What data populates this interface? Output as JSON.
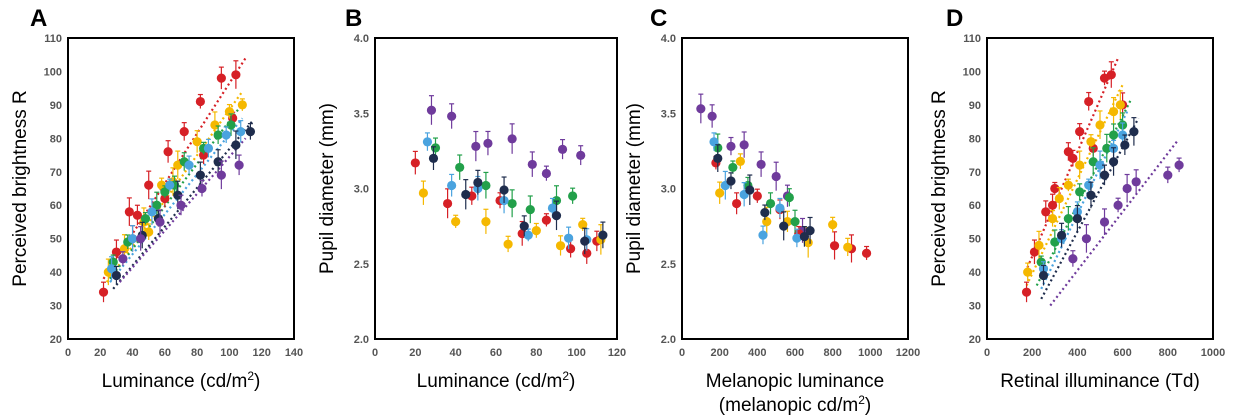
{
  "colors": {
    "red": "#d62026",
    "orange": "#f5b800",
    "green": "#22a04a",
    "blue": "#4aa3df",
    "navy": "#1f2d4d",
    "purple": "#6f3b9c",
    "yellow": "#f7c520"
  },
  "chart_data": [
    {
      "panel_label": "A",
      "type": "scatter",
      "xlabel": "Luminance (cd/m²)",
      "ylabel": "Perceived brightness R",
      "xlim": [
        0,
        140
      ],
      "ylim": [
        20,
        110
      ],
      "xticks": [
        "0",
        "20",
        "40",
        "60",
        "80",
        "100",
        "120",
        "140"
      ],
      "yticks": [
        "20",
        "30",
        "40",
        "50",
        "60",
        "70",
        "80",
        "90",
        "100",
        "110"
      ],
      "series": [
        {
          "color": "red",
          "points": [
            [
              22,
              34
            ],
            [
              30,
              46
            ],
            [
              38,
              58
            ],
            [
              43,
              57
            ],
            [
              50,
              66
            ],
            [
              62,
              76
            ],
            [
              72,
              82
            ],
            [
              82,
              91
            ],
            [
              95,
              98
            ],
            [
              104,
              99
            ],
            [
              40,
              50
            ],
            [
              60,
              62
            ],
            [
              84,
              75
            ],
            [
              102,
              86
            ]
          ],
          "fit": [
            [
              22,
              38
            ],
            [
              110,
              104
            ]
          ]
        },
        {
          "color": "orange",
          "points": [
            [
              25,
              40
            ],
            [
              35,
              47
            ],
            [
              47,
              55
            ],
            [
              58,
              66
            ],
            [
              68,
              72
            ],
            [
              80,
              79
            ],
            [
              91,
              84
            ],
            [
              100,
              88
            ],
            [
              108,
              90
            ],
            [
              50,
              52
            ],
            [
              65,
              67
            ]
          ],
          "fit": [
            [
              24,
              37
            ],
            [
              108,
              94
            ]
          ]
        },
        {
          "color": "green",
          "points": [
            [
              28,
              43
            ],
            [
              37,
              49
            ],
            [
              48,
              56
            ],
            [
              60,
              64
            ],
            [
              72,
              73
            ],
            [
              84,
              77
            ],
            [
              93,
              81
            ],
            [
              101,
              84
            ],
            [
              55,
              60
            ],
            [
              66,
              66
            ]
          ],
          "fit": [
            [
              26,
              38
            ],
            [
              106,
              89
            ]
          ]
        },
        {
          "color": "blue",
          "points": [
            [
              27,
              41
            ],
            [
              40,
              50
            ],
            [
              52,
              58
            ],
            [
              63,
              66
            ],
            [
              75,
              72
            ],
            [
              87,
              77
            ],
            [
              98,
              81
            ],
            [
              107,
              82
            ]
          ],
          "fit": [
            [
              26,
              37
            ],
            [
              108,
              86
            ]
          ]
        },
        {
          "color": "navy",
          "points": [
            [
              30,
              39
            ],
            [
              46,
              51
            ],
            [
              56,
              56
            ],
            [
              68,
              63
            ],
            [
              82,
              69
            ],
            [
              93,
              73
            ],
            [
              104,
              78
            ],
            [
              113,
              82
            ]
          ],
          "fit": [
            [
              28,
              35
            ],
            [
              114,
              85
            ]
          ]
        },
        {
          "color": "purple",
          "points": [
            [
              34,
              44
            ],
            [
              45,
              50
            ],
            [
              57,
              55
            ],
            [
              70,
              60
            ],
            [
              83,
              65
            ],
            [
              95,
              69
            ],
            [
              106,
              72
            ]
          ],
          "fit": [
            [
              32,
              37
            ],
            [
              110,
              80
            ]
          ]
        }
      ]
    },
    {
      "panel_label": "B",
      "type": "scatter",
      "xlabel": "Luminance (cd/m²)",
      "ylabel": "Pupil diameter (mm)",
      "xlim": [
        0,
        120
      ],
      "ylim": [
        2.0,
        4.0
      ],
      "xticks": [
        "0",
        "20",
        "40",
        "60",
        "80",
        "100",
        "120"
      ],
      "yticks": [
        "2.0",
        "2.5",
        "3.0",
        "3.5",
        "4.0"
      ],
      "series": [
        {
          "color": "purple",
          "points": [
            [
              28,
              3.52
            ],
            [
              38,
              3.48
            ],
            [
              50,
              3.28
            ],
            [
              56,
              3.3
            ],
            [
              68,
              3.33
            ],
            [
              78,
              3.16
            ],
            [
              85,
              3.1
            ],
            [
              93,
              3.26
            ],
            [
              102,
              3.22
            ]
          ]
        },
        {
          "color": "red",
          "points": [
            [
              20,
              3.17
            ],
            [
              36,
              2.9
            ],
            [
              48,
              2.95
            ],
            [
              62,
              2.92
            ],
            [
              73,
              2.7
            ],
            [
              85,
              2.79
            ],
            [
              97,
              2.6
            ],
            [
              105,
              2.57
            ],
            [
              110,
              2.65
            ]
          ]
        },
        {
          "color": "orange",
          "points": [
            [
              24,
              2.97
            ],
            [
              40,
              2.78
            ],
            [
              55,
              2.78
            ],
            [
              66,
              2.63
            ],
            [
              80,
              2.72
            ],
            [
              92,
              2.62
            ],
            [
              103,
              2.76
            ],
            [
              112,
              2.66
            ]
          ]
        },
        {
          "color": "green",
          "points": [
            [
              30,
              3.27
            ],
            [
              42,
              3.14
            ],
            [
              55,
              3.02
            ],
            [
              68,
              2.9
            ],
            [
              77,
              2.86
            ],
            [
              90,
              2.92
            ],
            [
              98,
              2.95
            ]
          ]
        },
        {
          "color": "blue",
          "points": [
            [
              26,
              3.31
            ],
            [
              38,
              3.02
            ],
            [
              51,
              3.0
            ],
            [
              64,
              2.92
            ],
            [
              76,
              2.69
            ],
            [
              88,
              2.87
            ],
            [
              96,
              2.67
            ],
            [
              105,
              2.66
            ]
          ]
        },
        {
          "color": "navy",
          "points": [
            [
              29,
              3.2
            ],
            [
              45,
              2.96
            ],
            [
              51,
              3.04
            ],
            [
              64,
              2.99
            ],
            [
              74,
              2.75
            ],
            [
              90,
              2.82
            ],
            [
              104,
              2.65
            ],
            [
              113,
              2.69
            ]
          ]
        }
      ]
    },
    {
      "panel_label": "C",
      "type": "scatter",
      "xlabel": "Melanopic luminance",
      "xlabel_2": "(melanopic cd/m²)",
      "ylabel": "Pupil diameter (mm)",
      "xlim": [
        0,
        1200
      ],
      "ylim": [
        2.0,
        4.0
      ],
      "xticks": [
        "0",
        "200",
        "400",
        "600",
        "800",
        "1000",
        "1200"
      ],
      "yticks": [
        "2.0",
        "2.5",
        "3.0",
        "3.5",
        "4.0"
      ],
      "series": [
        {
          "color": "purple",
          "points": [
            [
              100,
              3.53
            ],
            [
              160,
              3.48
            ],
            [
              260,
              3.28
            ],
            [
              330,
              3.29
            ],
            [
              420,
              3.16
            ],
            [
              500,
              3.08
            ],
            [
              560,
              2.95
            ],
            [
              640,
              2.72
            ]
          ]
        },
        {
          "color": "red",
          "points": [
            [
              180,
              3.17
            ],
            [
              290,
              2.9
            ],
            [
              400,
              2.95
            ],
            [
              520,
              2.86
            ],
            [
              620,
              2.7
            ],
            [
              810,
              2.62
            ],
            [
              900,
              2.6
            ],
            [
              980,
              2.57
            ]
          ]
        },
        {
          "color": "orange",
          "points": [
            [
              200,
              2.97
            ],
            [
              310,
              3.18
            ],
            [
              450,
              2.78
            ],
            [
              560,
              2.78
            ],
            [
              670,
              2.64
            ],
            [
              800,
              2.76
            ],
            [
              880,
              2.61
            ]
          ]
        },
        {
          "color": "green",
          "points": [
            [
              190,
              3.27
            ],
            [
              270,
              3.14
            ],
            [
              350,
              3.02
            ],
            [
              470,
              2.9
            ],
            [
              570,
              2.94
            ],
            [
              600,
              2.78
            ]
          ]
        },
        {
          "color": "blue",
          "points": [
            [
              170,
              3.31
            ],
            [
              230,
              3.02
            ],
            [
              330,
              2.96
            ],
            [
              430,
              2.69
            ],
            [
              520,
              2.87
            ],
            [
              610,
              2.67
            ]
          ]
        },
        {
          "color": "navy",
          "points": [
            [
              190,
              3.2
            ],
            [
              260,
              3.05
            ],
            [
              360,
              2.99
            ],
            [
              440,
              2.84
            ],
            [
              540,
              2.75
            ],
            [
              650,
              2.68
            ],
            [
              680,
              2.72
            ]
          ]
        }
      ]
    },
    {
      "panel_label": "D",
      "type": "scatter",
      "xlabel": "Retinal illuminance (Td)",
      "ylabel": "Perceived brightness R",
      "xlim": [
        0,
        1000
      ],
      "ylim": [
        20,
        110
      ],
      "xticks": [
        "0",
        "200",
        "400",
        "600",
        "800",
        "1000"
      ],
      "yticks": [
        "20",
        "30",
        "40",
        "50",
        "60",
        "70",
        "80",
        "90",
        "100",
        "110"
      ],
      "series": [
        {
          "color": "red",
          "points": [
            [
              175,
              34
            ],
            [
              210,
              46
            ],
            [
              260,
              58
            ],
            [
              300,
              65
            ],
            [
              360,
              76
            ],
            [
              410,
              82
            ],
            [
              450,
              91
            ],
            [
              520,
              98
            ],
            [
              550,
              99
            ],
            [
              290,
              60
            ],
            [
              380,
              74
            ],
            [
              470,
              77
            ],
            [
              600,
              90
            ]
          ],
          "fit": [
            [
              170,
              40
            ],
            [
              580,
              104
            ]
          ]
        },
        {
          "color": "orange",
          "points": [
            [
              180,
              40
            ],
            [
              230,
              48
            ],
            [
              290,
              56
            ],
            [
              360,
              66
            ],
            [
              410,
              72
            ],
            [
              460,
              79
            ],
            [
              500,
              84
            ],
            [
              560,
              88
            ],
            [
              590,
              90
            ],
            [
              320,
              62
            ]
          ],
          "fit": [
            [
              175,
              36
            ],
            [
              600,
              96
            ]
          ]
        },
        {
          "color": "green",
          "points": [
            [
              240,
              43
            ],
            [
              300,
              49
            ],
            [
              360,
              56
            ],
            [
              410,
              64
            ],
            [
              470,
              73
            ],
            [
              530,
              77
            ],
            [
              560,
              81
            ],
            [
              600,
              84
            ]
          ],
          "fit": [
            [
              220,
              36
            ],
            [
              640,
              92
            ]
          ]
        },
        {
          "color": "blue",
          "points": [
            [
              250,
              41
            ],
            [
              330,
              50
            ],
            [
              400,
              58
            ],
            [
              450,
              66
            ],
            [
              500,
              72
            ],
            [
              560,
              77
            ],
            [
              600,
              81
            ]
          ],
          "fit": [
            [
              240,
              35
            ],
            [
              620,
              88
            ]
          ]
        },
        {
          "color": "navy",
          "points": [
            [
              250,
              39
            ],
            [
              330,
              51
            ],
            [
              400,
              56
            ],
            [
              460,
              63
            ],
            [
              520,
              69
            ],
            [
              560,
              73
            ],
            [
              610,
              78
            ],
            [
              650,
              82
            ]
          ],
          "fit": [
            [
              240,
              32
            ],
            [
              670,
              86
            ]
          ]
        },
        {
          "color": "purple",
          "points": [
            [
              380,
              44
            ],
            [
              440,
              50
            ],
            [
              520,
              55
            ],
            [
              580,
              60
            ],
            [
              620,
              65
            ],
            [
              660,
              67
            ],
            [
              800,
              69
            ],
            [
              850,
              72
            ]
          ],
          "fit": [
            [
              280,
              30
            ],
            [
              840,
              79
            ]
          ]
        }
      ]
    }
  ]
}
